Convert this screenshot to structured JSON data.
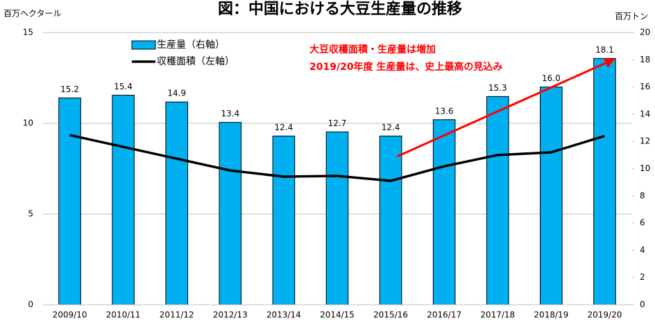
{
  "chart_data": {
    "type": "bar",
    "title": "図：中国における大豆生産量の推移",
    "y_label": "百万ヘクタール",
    "y2_label": "百万トン",
    "annotations": [
      "大豆収穫面積・生産量は増加",
      "2019/20年度 生産量は、史上最高の見込み"
    ],
    "categories": [
      "2009/10",
      "2010/11",
      "2011/12",
      "2012/13",
      "2013/14",
      "2014/15",
      "2015/16",
      "2016/17",
      "2017/18",
      "2018/19",
      "2019/20"
    ],
    "series": [
      {
        "name": "生産量（右軸）",
        "type": "bar",
        "axis": "y2",
        "color": "#00b0f0",
        "values": [
          15.2,
          15.4,
          14.9,
          13.4,
          12.4,
          12.7,
          12.4,
          13.6,
          15.3,
          16.0,
          18.1
        ],
        "value_labels": [
          "15.2",
          "15.4",
          "14.9",
          "13.4",
          "12.4",
          "12.7",
          "12.4",
          "13.6",
          "15.3",
          "16.0",
          "18.1"
        ]
      },
      {
        "name": "収穫面積（左軸）",
        "type": "line",
        "axis": "y",
        "color": "#000000",
        "values": [
          9.35,
          8.7,
          8.05,
          7.4,
          7.06,
          7.1,
          6.83,
          7.63,
          8.25,
          8.4,
          9.3
        ]
      }
    ],
    "ylim": [
      0,
      15
    ],
    "yticks": [
      0,
      5,
      10,
      15
    ],
    "y2lim": [
      0,
      20
    ],
    "y2ticks": [
      0,
      2,
      4,
      6,
      8,
      10,
      12,
      14,
      16,
      18,
      20
    ],
    "grid": true
  }
}
